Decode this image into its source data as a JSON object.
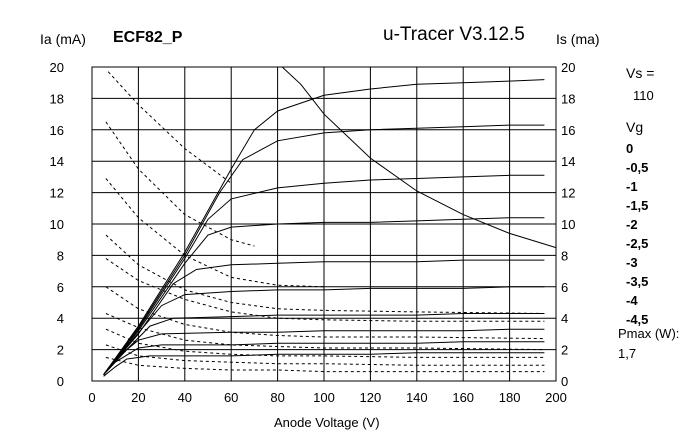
{
  "header": {
    "left_axis_label": "Ia (mA)",
    "title": "ECF82_P",
    "app": "u-Tracer V3.12.5",
    "right_axis_label": "Is (ma)"
  },
  "side_panel": {
    "vs_label": "Vs =",
    "vs_value": "110",
    "vg_label": "Vg",
    "vg_values": [
      "0",
      "-0,5",
      "-1",
      "-1,5",
      "-2",
      "-2,5",
      "-3",
      "-3,5",
      "-4",
      "-4,5"
    ],
    "pmax_label": "Pmax (W):",
    "pmax_value": "1,7"
  },
  "chart_data": {
    "type": "line",
    "title": "ECF82_P",
    "xlabel": "Anode Voltage (V)",
    "ylabel": "Ia (mA)",
    "y2label": "Is (ma)",
    "xlim": [
      0,
      200
    ],
    "ylim": [
      0,
      20
    ],
    "x_ticks": [
      0,
      20,
      40,
      60,
      80,
      100,
      120,
      140,
      160,
      180,
      200
    ],
    "y_ticks": [
      0,
      2,
      4,
      6,
      8,
      10,
      12,
      14,
      16,
      18,
      20
    ],
    "grid": true,
    "colors": {
      "curve": "#000000",
      "grid": "#000000",
      "background": "#ffffff"
    },
    "anode_current_series": [
      {
        "name": "0",
        "x": [
          5,
          20,
          40,
          60,
          70,
          80,
          100,
          120,
          140,
          160,
          180,
          195
        ],
        "y": [
          0.4,
          3.5,
          8.2,
          13.5,
          16.0,
          17.2,
          18.2,
          18.6,
          18.9,
          19.0,
          19.1,
          19.2
        ]
      },
      {
        "name": "-0,5",
        "x": [
          5,
          20,
          40,
          55,
          65,
          80,
          100,
          120,
          140,
          160,
          180,
          195
        ],
        "y": [
          0.4,
          3.4,
          8.0,
          12.0,
          14.1,
          15.3,
          15.8,
          16.0,
          16.1,
          16.2,
          16.3,
          16.3
        ]
      },
      {
        "name": "-1",
        "x": [
          5,
          20,
          40,
          50,
          60,
          80,
          100,
          120,
          140,
          160,
          180,
          195
        ],
        "y": [
          0.4,
          3.3,
          7.8,
          10.3,
          11.6,
          12.3,
          12.6,
          12.8,
          12.9,
          13.0,
          13.1,
          13.1
        ]
      },
      {
        "name": "-1,5",
        "x": [
          5,
          20,
          40,
          50,
          60,
          80,
          100,
          120,
          140,
          160,
          180,
          195
        ],
        "y": [
          0.4,
          3.2,
          7.5,
          9.3,
          9.8,
          10.0,
          10.1,
          10.1,
          10.2,
          10.3,
          10.4,
          10.4
        ]
      },
      {
        "name": "-2",
        "x": [
          5,
          20,
          35,
          45,
          60,
          80,
          100,
          120,
          140,
          160,
          180,
          195
        ],
        "y": [
          0.4,
          3.0,
          6.2,
          7.1,
          7.4,
          7.5,
          7.6,
          7.6,
          7.6,
          7.7,
          7.7,
          7.7
        ]
      },
      {
        "name": "-2,5",
        "x": [
          5,
          15,
          30,
          40,
          60,
          80,
          100,
          120,
          140,
          160,
          180,
          195
        ],
        "y": [
          0.4,
          2.2,
          4.8,
          5.5,
          5.7,
          5.8,
          5.8,
          5.9,
          5.9,
          5.9,
          6.0,
          6.0
        ]
      },
      {
        "name": "-3",
        "x": [
          5,
          15,
          25,
          35,
          60,
          80,
          100,
          120,
          140,
          160,
          180,
          195
        ],
        "y": [
          0.4,
          2.0,
          3.5,
          4.0,
          4.1,
          4.2,
          4.2,
          4.2,
          4.2,
          4.3,
          4.3,
          4.3
        ]
      },
      {
        "name": "-3,5",
        "x": [
          5,
          10,
          20,
          30,
          60,
          80,
          100,
          120,
          140,
          160,
          180,
          195
        ],
        "y": [
          0.4,
          1.4,
          2.6,
          3.0,
          3.1,
          3.1,
          3.2,
          3.2,
          3.2,
          3.2,
          3.3,
          3.3
        ]
      },
      {
        "name": "-4",
        "x": [
          5,
          10,
          20,
          30,
          60,
          80,
          100,
          120,
          140,
          160,
          180,
          195
        ],
        "y": [
          0.4,
          1.2,
          2.1,
          2.3,
          2.3,
          2.4,
          2.4,
          2.4,
          2.4,
          2.5,
          2.5,
          2.5
        ]
      },
      {
        "name": "-4,5",
        "x": [
          5,
          10,
          15,
          25,
          60,
          80,
          100,
          120,
          140,
          160,
          180,
          195
        ],
        "y": [
          0.3,
          0.9,
          1.4,
          1.6,
          1.6,
          1.7,
          1.7,
          1.7,
          1.8,
          1.8,
          1.8,
          1.8
        ]
      }
    ],
    "screen_current_series": [
      {
        "name": "0",
        "x": [
          7,
          20,
          40,
          60
        ],
        "y": [
          19.7,
          17.6,
          14.8,
          12.6
        ]
      },
      {
        "name": "-0,5",
        "x": [
          6,
          20,
          40,
          60,
          70
        ],
        "y": [
          16.5,
          13.5,
          10.6,
          9.0,
          8.6
        ]
      },
      {
        "name": "-1",
        "x": [
          6,
          20,
          40,
          60,
          80,
          100
        ],
        "y": [
          12.9,
          10.4,
          8.0,
          6.6,
          6.1,
          6.0
        ]
      },
      {
        "name": "-1,5",
        "x": [
          6,
          20,
          40,
          60,
          80,
          100,
          140,
          195
        ],
        "y": [
          9.3,
          7.4,
          5.8,
          5.0,
          4.6,
          4.5,
          4.4,
          4.3
        ]
      },
      {
        "name": "-2",
        "x": [
          6,
          20,
          40,
          60,
          80,
          100,
          140,
          195
        ],
        "y": [
          7.8,
          6.4,
          5.2,
          4.4,
          4.0,
          3.9,
          3.8,
          3.8
        ]
      },
      {
        "name": "-2,5",
        "x": [
          6,
          20,
          40,
          60,
          80,
          100,
          140,
          195
        ],
        "y": [
          6.0,
          4.6,
          3.6,
          3.1,
          2.9,
          2.8,
          2.8,
          2.7
        ]
      },
      {
        "name": "-3",
        "x": [
          6,
          20,
          40,
          60,
          80,
          100,
          140,
          195
        ],
        "y": [
          4.3,
          3.4,
          2.6,
          2.3,
          2.2,
          2.1,
          2.1,
          2.0
        ]
      },
      {
        "name": "-3,5",
        "x": [
          6,
          20,
          40,
          60,
          80,
          100,
          140,
          195
        ],
        "y": [
          3.3,
          2.4,
          1.9,
          1.7,
          1.6,
          1.6,
          1.5,
          1.5
        ]
      },
      {
        "name": "-4",
        "x": [
          6,
          20,
          40,
          60,
          80,
          100,
          140,
          195
        ],
        "y": [
          2.3,
          1.6,
          1.3,
          1.2,
          1.1,
          1.1,
          1.0,
          1.0
        ]
      },
      {
        "name": "-4,5",
        "x": [
          6,
          20,
          40,
          60,
          80,
          100,
          140,
          195
        ],
        "y": [
          1.5,
          1.0,
          0.8,
          0.7,
          0.7,
          0.6,
          0.6,
          0.6
        ]
      }
    ],
    "pmax_curve": {
      "x": [
        82,
        90,
        100,
        120,
        140,
        160,
        180,
        200
      ],
      "y": [
        20.0,
        18.9,
        17.0,
        14.2,
        12.1,
        10.6,
        9.4,
        8.5
      ]
    }
  }
}
